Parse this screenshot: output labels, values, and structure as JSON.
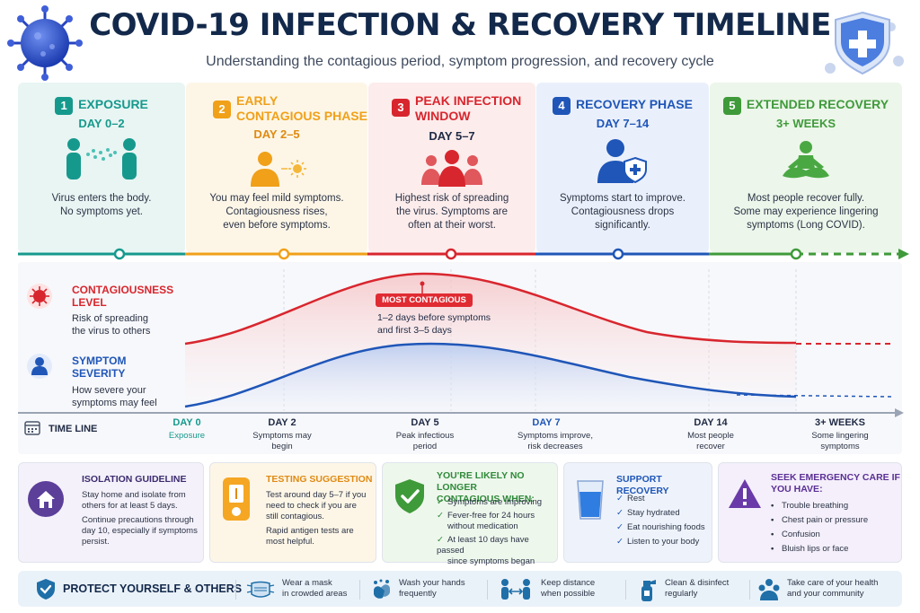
{
  "header": {
    "title": "COVID-19 INFECTION & RECOVERY TIMELINE",
    "subtitle": "Understanding the contagious period, symptom progression, and recovery cycle"
  },
  "phases": [
    {
      "num": "1",
      "title": "EXPOSURE",
      "days": "DAY 0–2",
      "desc": [
        "Virus enters the body.",
        "No symptoms yet."
      ],
      "color": "#16998d",
      "bg": "#e8f5f3",
      "icon": "people-spreading-icon"
    },
    {
      "num": "2",
      "title": "EARLY CONTAGIOUS PHASE",
      "title_lines": [
        "EARLY",
        "CONTAGIOUS PHASE"
      ],
      "days": "DAY 2–5",
      "desc": [
        "You may feel mild symptoms.",
        "Contagiousness rises,",
        "even before symptoms."
      ],
      "color": "#f0a019",
      "bg": "#fdf6e7",
      "icon": "person-sun-icon"
    },
    {
      "num": "3",
      "title": "PEAK INFECTION WINDOW",
      "title_lines": [
        "PEAK INFECTION",
        "WINDOW"
      ],
      "days": "DAY 5–7",
      "desc": [
        "Highest risk of spreading",
        "the virus. Symptoms are",
        "often at their worst."
      ],
      "color": "#d8262e",
      "bg": "#fdecec",
      "icon": "group-icon"
    },
    {
      "num": "4",
      "title": "RECOVERY PHASE",
      "days": "DAY 7–14",
      "desc": [
        "Symptoms start to improve.",
        "Contagiousness drops",
        "significantly."
      ],
      "color": "#1f56b8",
      "bg": "#eaf0fb",
      "icon": "person-shield-icon"
    },
    {
      "num": "5",
      "title": "EXTENDED RECOVERY",
      "days": "3+ WEEKS",
      "desc": [
        "Most people recover fully.",
        "Some may experience lingering",
        "symptoms (Long COVID)."
      ],
      "color": "#3f9a3a",
      "bg": "#ecf6ea",
      "icon": "meditation-icon"
    }
  ],
  "chart_data": {
    "type": "line",
    "title": "",
    "x_labels": [
      "DAY 0",
      "DAY 2",
      "DAY 5",
      "DAY 7",
      "DAY 14",
      "3+ WEEKS"
    ],
    "x_sublabels": [
      [
        "Exposure"
      ],
      [
        "Symptoms may",
        "begin"
      ],
      [
        "Peak infectious",
        "period"
      ],
      [
        "Symptoms improve,",
        "risk decreases"
      ],
      [
        "Most people",
        "recover"
      ],
      [
        "Some lingering",
        "symptoms"
      ]
    ],
    "series": [
      {
        "name": "CONTAGIOUSNESS LEVEL",
        "description": [
          "Risk of spreading",
          "the virus to others"
        ],
        "color": "#d8262e",
        "shape": "rise to peak around day 5, fall by day 14"
      },
      {
        "name": "SYMPTOM SEVERITY",
        "description": [
          "How severe your",
          "symptoms may feel"
        ],
        "color": "#1f56b8",
        "shape": "rise to peak around day 5–7, taper after day 14"
      }
    ],
    "annotation": {
      "label": "MOST CONTAGIOUS",
      "text": [
        "1–2 days before symptoms",
        "and first 3–5 days"
      ]
    },
    "axis_label": "TIME LINE"
  },
  "cards": {
    "isolation": {
      "title": "ISOLATION GUIDELINE",
      "color": "#5b3f99",
      "p1": [
        "Stay home and isolate from",
        "others for at least 5 days."
      ],
      "p2": [
        "Continue precautions through",
        "day 10, especially if symptoms",
        "persist."
      ]
    },
    "testing": {
      "title": "TESTING SUGGESTION",
      "color": "#e08a12",
      "p1": [
        "Test around day 5–7 if you",
        "need to check if you are",
        "still contagious."
      ],
      "p2": [
        "Rapid antigen tests are",
        "most helpful."
      ]
    },
    "no_longer": {
      "title_lines": [
        "YOU'RE LIKELY NO LONGER",
        "CONTAGIOUS WHEN:"
      ],
      "color": "#2f8a3a",
      "items": [
        [
          "Symptoms are improving"
        ],
        [
          "Fever-free for 24 hours",
          "without medication"
        ],
        [
          "At least 10 days have passed",
          "since symptoms began"
        ]
      ]
    },
    "support": {
      "title": "SUPPORT RECOVERY",
      "color": "#1f56b8",
      "items": [
        "Rest",
        "Stay hydrated",
        "Eat nourishing foods",
        "Listen to your body"
      ]
    },
    "emergency": {
      "title_lines": [
        "SEEK EMERGENCY CARE IF",
        "YOU HAVE:"
      ],
      "color": "#6a3aa8",
      "items": [
        "Trouble breathing",
        "Chest pain or pressure",
        "Confusion",
        "Bluish lips or face"
      ]
    }
  },
  "footer": {
    "title": "PROTECT YOURSELF & OTHERS",
    "items": [
      {
        "text": [
          "Wear a mask",
          "in crowded areas"
        ],
        "icon": "mask-icon"
      },
      {
        "text": [
          "Wash your hands",
          "frequently"
        ],
        "icon": "handwash-icon"
      },
      {
        "text": [
          "Keep distance",
          "when possible"
        ],
        "icon": "distance-icon"
      },
      {
        "text": [
          "Clean & disinfect",
          "regularly"
        ],
        "icon": "spray-icon"
      },
      {
        "text": [
          "Take care of your health",
          "and your community"
        ],
        "icon": "community-icon"
      }
    ]
  }
}
